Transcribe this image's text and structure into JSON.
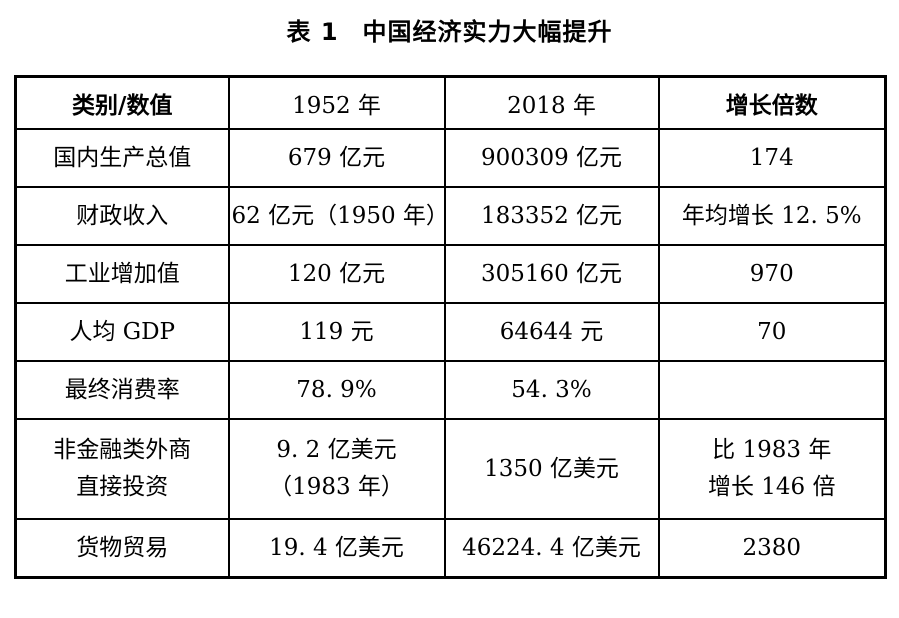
{
  "caption": {
    "label": "表 1",
    "title": "中国经济实力大幅提升"
  },
  "table": {
    "headers": [
      "类别/数值",
      "1952 年",
      "2018 年",
      "增长倍数"
    ],
    "rows": [
      {
        "cells": [
          [
            "国内生产总值"
          ],
          [
            "679 亿元"
          ],
          [
            "900309 亿元"
          ],
          [
            "174"
          ]
        ]
      },
      {
        "cells": [
          [
            "财政收入"
          ],
          [
            "62 亿元（1950 年）"
          ],
          [
            "183352 亿元"
          ],
          [
            "年均增长 12. 5%"
          ]
        ]
      },
      {
        "cells": [
          [
            "工业增加值"
          ],
          [
            "120 亿元"
          ],
          [
            "305160 亿元"
          ],
          [
            "970"
          ]
        ]
      },
      {
        "cells": [
          [
            "人均 GDP"
          ],
          [
            "119 元"
          ],
          [
            "64644 元"
          ],
          [
            "70"
          ]
        ]
      },
      {
        "cells": [
          [
            "最终消费率"
          ],
          [
            "78. 9%"
          ],
          [
            "54. 3%"
          ],
          [
            ""
          ]
        ]
      },
      {
        "cells": [
          [
            "非金融类外商",
            "直接投资"
          ],
          [
            "9. 2 亿美元",
            "（1983 年）"
          ],
          [
            "1350 亿美元"
          ],
          [
            "比 1983 年",
            "增长 146 倍"
          ]
        ]
      },
      {
        "cells": [
          [
            "货物贸易"
          ],
          [
            "19. 4 亿美元"
          ],
          [
            "46224. 4 亿美元"
          ],
          [
            "2380"
          ]
        ]
      }
    ]
  },
  "colors": {
    "text": "#000000",
    "border": "#000000",
    "background": "#ffffff"
  }
}
